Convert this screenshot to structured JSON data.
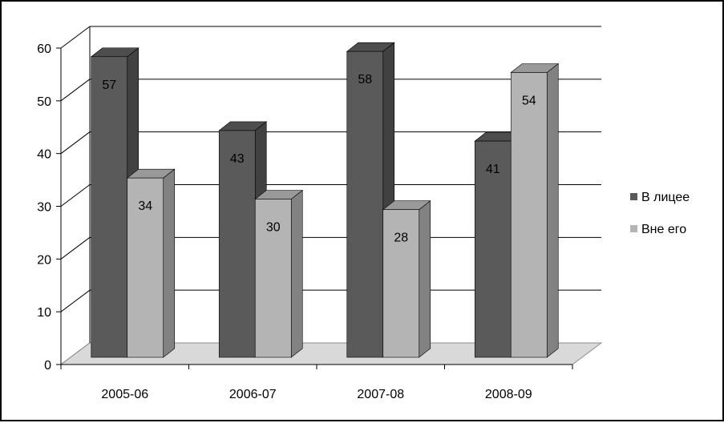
{
  "chart_data": {
    "type": "bar",
    "categories": [
      "2005-06",
      "2006-07",
      "2007-08",
      "2008-09"
    ],
    "series": [
      {
        "name": "В лицее",
        "values": [
          57,
          43,
          58,
          41
        ]
      },
      {
        "name": "Вне его",
        "values": [
          34,
          30,
          28,
          54
        ]
      }
    ],
    "ylim": [
      0,
      60
    ],
    "yticks": [
      "0",
      "10",
      "20",
      "30",
      "40",
      "50",
      "60"
    ],
    "grid": true,
    "legend_position": "right",
    "style": "3d-clustered-column",
    "colors": {
      "series": [
        "#5a5a5a",
        "#b4b4b4"
      ],
      "wall": "#ffffff",
      "grid": "#000000",
      "floor": "#d9d9d9"
    }
  }
}
